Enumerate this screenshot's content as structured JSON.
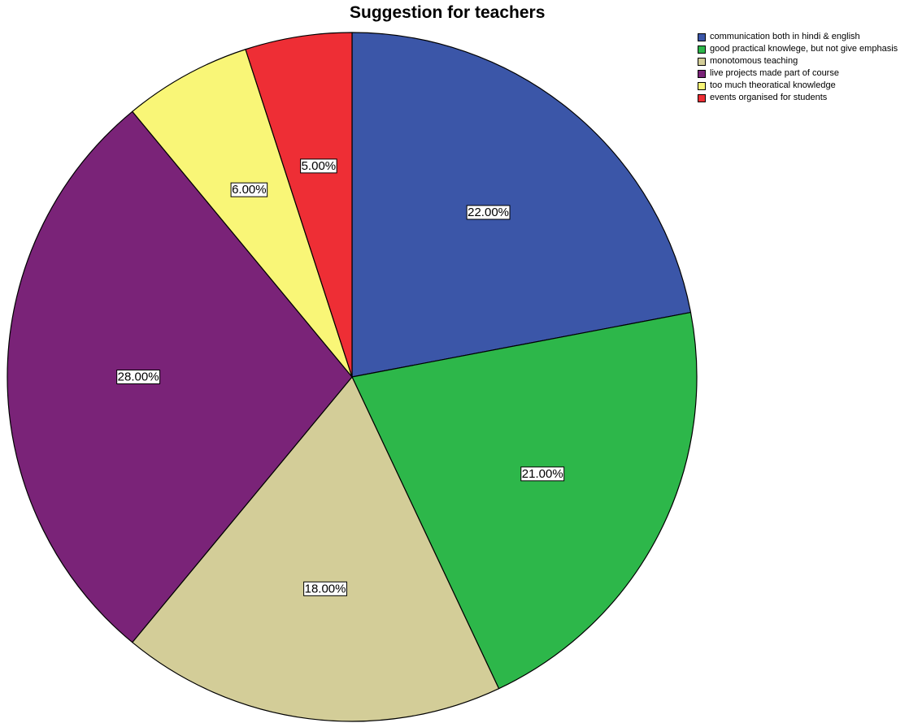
{
  "chart_data": {
    "type": "pie",
    "title": "Suggestion for teachers",
    "legend_position": "top-right",
    "slices": [
      {
        "label": "communication both in hindi & english",
        "value": 22,
        "value_label": "22.00%",
        "color": "#3B56A8"
      },
      {
        "label": "good practical knowlege, but not give emphasis",
        "value": 21,
        "value_label": "21.00%",
        "color": "#2DB74A"
      },
      {
        "label": "monotomous teaching",
        "value": 18,
        "value_label": "18.00%",
        "color": "#D3CD98"
      },
      {
        "label": "live projects made part of course",
        "value": 28,
        "value_label": "28.00%",
        "color": "#7A2378"
      },
      {
        "label": "too much theoratical knowledge",
        "value": 6,
        "value_label": "6.00%",
        "color": "#F9F677"
      },
      {
        "label": "events organised for students",
        "value": 5,
        "value_label": "5.00%",
        "color": "#EE2E35"
      }
    ]
  }
}
